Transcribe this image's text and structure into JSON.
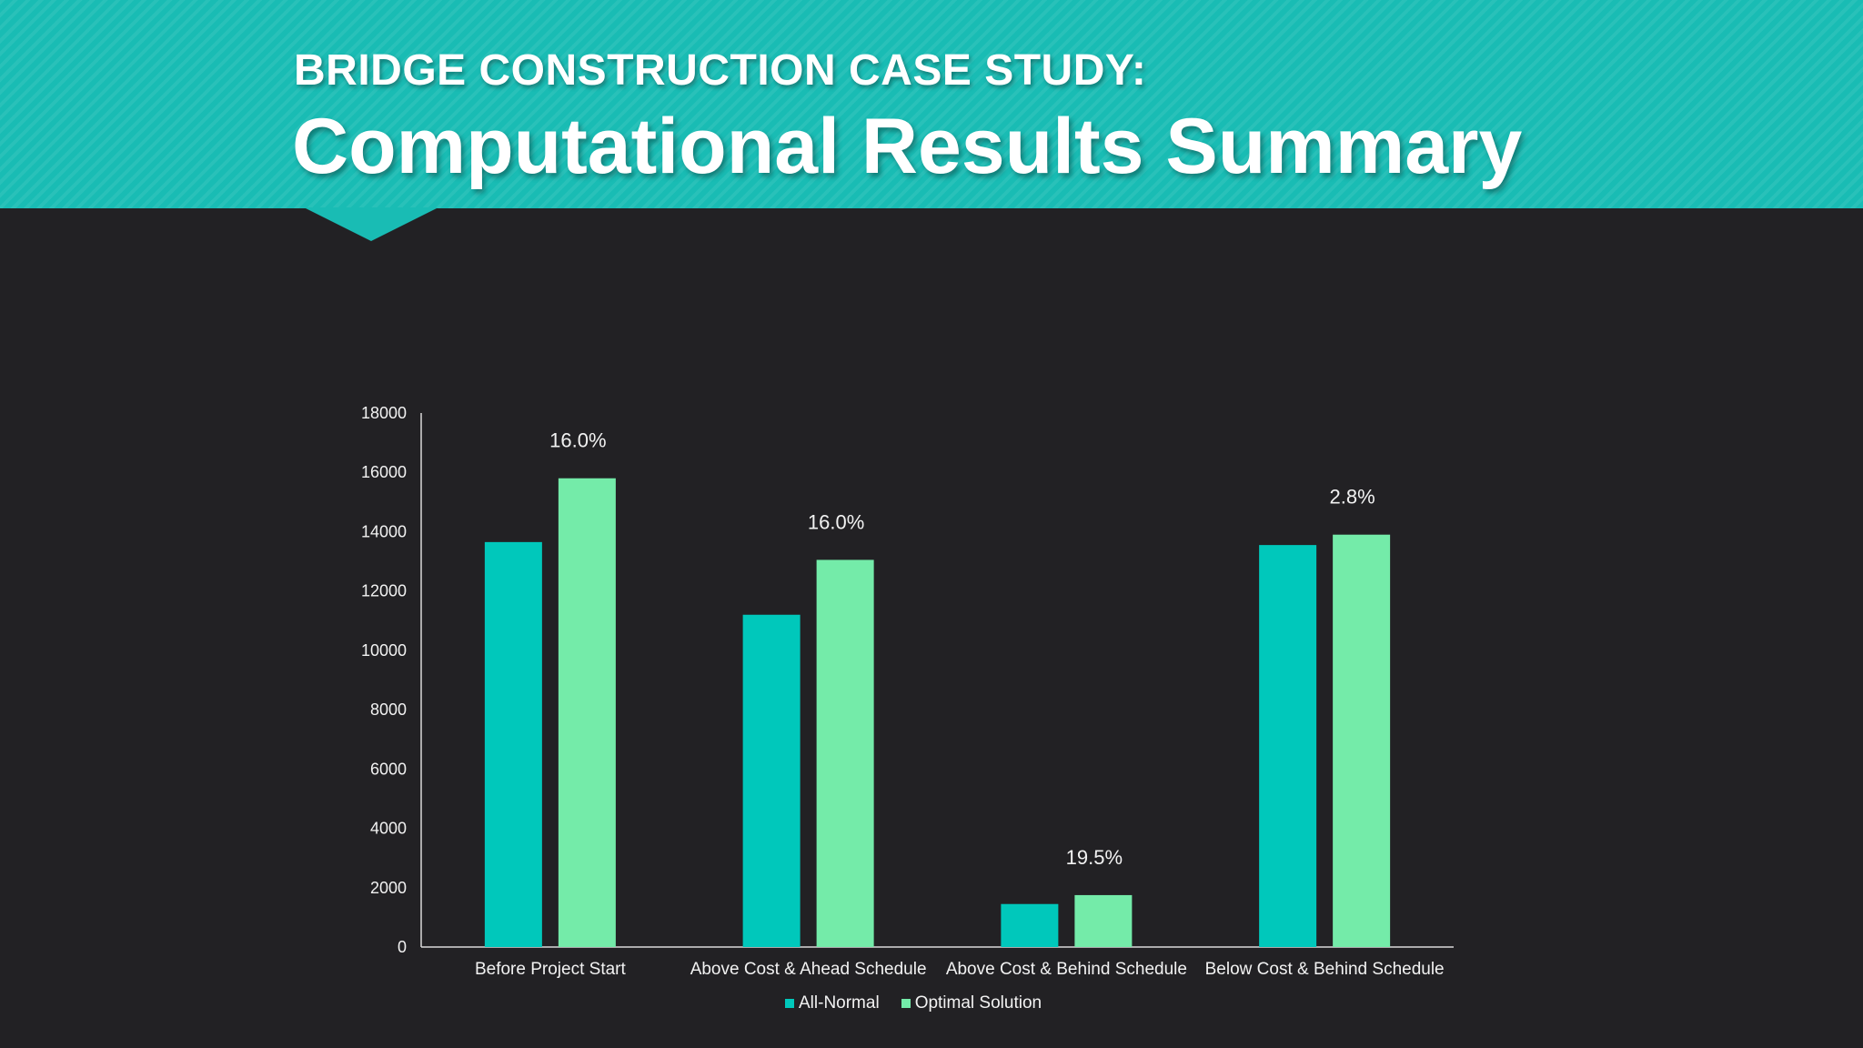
{
  "slide": {
    "title_line1": "BRIDGE CONSTRUCTION CASE STUDY:",
    "title_line2": "Computational Results Summary"
  },
  "colors": {
    "banner": "#19bcb4",
    "background": "#222124",
    "all_normal": "#00c8bb",
    "optimal_solution": "#74eba9",
    "text": "#f2f2f2"
  },
  "chart_data": {
    "type": "bar",
    "categories": [
      "Before Project Start",
      "Above Cost & Ahead Schedule",
      "Above Cost & Behind Schedule",
      "Below Cost & Behind Schedule"
    ],
    "series": [
      {
        "name": "All-Normal",
        "values": [
          13650,
          11200,
          1450,
          13550
        ]
      },
      {
        "name": "Optimal Solution",
        "values": [
          15800,
          13050,
          1750,
          13900
        ]
      }
    ],
    "annotations": [
      "16.0%",
      "16.0%",
      "19.5%",
      "2.8%"
    ],
    "ylim": [
      0,
      18000
    ],
    "yticks": [
      0,
      2000,
      4000,
      6000,
      8000,
      10000,
      12000,
      14000,
      16000,
      18000
    ],
    "title": "",
    "xlabel": "",
    "ylabel": "",
    "grid": false,
    "legend_position": "bottom"
  }
}
